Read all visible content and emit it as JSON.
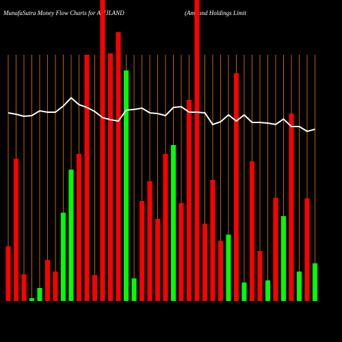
{
  "chart_data": {
    "type": "bar",
    "title": "MunafaSutra  Money Flow  Charts for AMJLAND",
    "subtitle": "(Amjland Holdings Limit",
    "ylim": [
      0,
      440
    ],
    "values": [
      80,
      208,
      39,
      4,
      19,
      60,
      43,
      129,
      192,
      215,
      360,
      38,
      440,
      362,
      393,
      337,
      33,
      146,
      175,
      120,
      215,
      228,
      143,
      294,
      440,
      113,
      177,
      88,
      97,
      333,
      27,
      204,
      73,
      30,
      151,
      124,
      274,
      43,
      150,
      55
    ],
    "colors": [
      "#ff0000",
      "#ff0000",
      "#ff0000",
      "#00ff00",
      "#00ff00",
      "#ff0000",
      "#ff0000",
      "#00ff00",
      "#00ff00",
      "#ff0000",
      "#ff0000",
      "#ff0000",
      "#ff0000",
      "#ff0000",
      "#ff0000",
      "#00ff00",
      "#00ff00",
      "#ff0000",
      "#ff0000",
      "#ff0000",
      "#ff0000",
      "#00ff00",
      "#ff0000",
      "#ff0000",
      "#ff0000",
      "#ff0000",
      "#ff0000",
      "#ff0000",
      "#00ff00",
      "#ff0000",
      "#00ff00",
      "#ff0000",
      "#ff0000",
      "#00ff00",
      "#ff0000",
      "#00ff00",
      "#ff0000",
      "#00ff00",
      "#ff0000",
      "#00ff00"
    ],
    "line_values": [
      275,
      273,
      270,
      271,
      278,
      276,
      276,
      285,
      297,
      287,
      283,
      277,
      268,
      265,
      263,
      279,
      280,
      282,
      275,
      274,
      271,
      283,
      284,
      276,
      276,
      275,
      258,
      262,
      272,
      263,
      272,
      261,
      261,
      260,
      258,
      266,
      255,
      255,
      248,
      251
    ],
    "line_color": "#ffffff"
  }
}
